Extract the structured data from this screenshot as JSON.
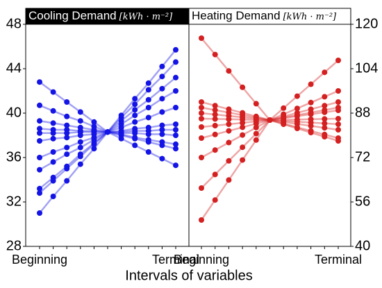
{
  "x_label": "Intervals of variables",
  "chart_data": [
    {
      "type": "line",
      "title": "Cooling Demand",
      "unit": "[kWh · m⁻²]",
      "color": "#1414e6",
      "categories": [
        "Beginning",
        null,
        null,
        null,
        null,
        null,
        null,
        null,
        null,
        null,
        "Terminal"
      ],
      "ylim": [
        28,
        48
      ],
      "yticks": [
        28,
        32,
        36,
        40,
        44,
        48
      ],
      "axis_side": "left",
      "series": [
        {
          "values": [
            42.8,
            41.9,
            41.0,
            40.1,
            39.2,
            38.3,
            37.7,
            37.1,
            36.5,
            35.9,
            35.3
          ]
        },
        {
          "values": [
            31.0,
            32.5,
            33.9,
            35.4,
            36.8,
            38.3,
            39.8,
            41.3,
            42.7,
            44.2,
            45.7
          ]
        },
        {
          "values": [
            33.2,
            34.2,
            35.2,
            36.3,
            37.3,
            38.3,
            39.6,
            40.8,
            42.1,
            43.3,
            44.6
          ]
        },
        {
          "values": [
            36.0,
            36.5,
            36.9,
            37.4,
            37.8,
            38.3,
            38.7,
            39.2,
            39.6,
            40.1,
            40.5
          ]
        },
        {
          "values": [
            40.7,
            40.2,
            39.7,
            39.3,
            38.8,
            38.3,
            38.0,
            37.7,
            37.4,
            37.1,
            36.8
          ]
        },
        {
          "values": [
            38.6,
            38.5,
            38.5,
            38.4,
            38.4,
            38.3,
            38.2,
            38.2,
            38.1,
            38.1,
            38.0
          ]
        },
        {
          "values": [
            37.5,
            37.7,
            37.8,
            38.0,
            38.1,
            38.3,
            38.4,
            38.6,
            38.7,
            38.9,
            39.0
          ]
        },
        {
          "values": [
            34.9,
            35.6,
            36.3,
            36.9,
            37.6,
            38.3,
            39.0,
            39.8,
            40.5,
            41.3,
            42.0
          ]
        },
        {
          "values": [
            39.3,
            39.1,
            38.9,
            38.7,
            38.5,
            38.3,
            38.1,
            37.8,
            37.6,
            37.4,
            37.2
          ]
        },
        {
          "values": [
            32.8,
            33.9,
            35.0,
            36.1,
            37.2,
            38.3,
            39.3,
            40.3,
            41.2,
            42.2,
            43.2
          ]
        },
        {
          "values": [
            38.2,
            38.2,
            38.2,
            38.3,
            38.3,
            38.3,
            38.3,
            38.4,
            38.4,
            38.5,
            38.5
          ]
        }
      ]
    },
    {
      "type": "line",
      "title": "Heating Demand",
      "unit": "[kWh · m⁻²]",
      "color": "#d42020",
      "categories": [
        "Beginning",
        null,
        null,
        null,
        null,
        null,
        null,
        null,
        null,
        null,
        "Terminal"
      ],
      "ylim": [
        40,
        120
      ],
      "yticks": [
        40,
        56,
        72,
        88,
        104,
        120
      ],
      "axis_side": "right",
      "series": [
        {
          "values": [
            115,
            109.1,
            103.2,
            97.3,
            91.4,
            85.5,
            84.2,
            82.9,
            81.6,
            80.3,
            79.0
          ]
        },
        {
          "values": [
            49.5,
            56.7,
            63.9,
            71.1,
            78.3,
            85.5,
            89.8,
            94.1,
            98.4,
            102.7,
            107.0
          ]
        },
        {
          "values": [
            61,
            65.9,
            70.8,
            75.7,
            80.6,
            85.5,
            87.6,
            89.7,
            91.8,
            93.9,
            96.0
          ]
        },
        {
          "values": [
            72,
            74.7,
            77.4,
            80.1,
            82.8,
            85.5,
            86.8,
            88.1,
            89.4,
            90.7,
            92.0
          ]
        },
        {
          "values": [
            90,
            89.1,
            88.2,
            87.3,
            86.4,
            85.5,
            84.8,
            84.1,
            83.4,
            82.7,
            82.0
          ]
        },
        {
          "values": [
            86,
            85.9,
            85.8,
            85.7,
            85.6,
            85.5,
            85.6,
            85.7,
            85.8,
            85.9,
            86.0
          ]
        },
        {
          "values": [
            83,
            83.5,
            84,
            84.5,
            85,
            85.5,
            86.2,
            86.9,
            87.6,
            88.3,
            89.0
          ]
        },
        {
          "values": [
            79,
            80.3,
            81.6,
            82.9,
            84.2,
            85.5,
            86.4,
            87.3,
            88.2,
            89.1,
            90.0
          ]
        },
        {
          "values": [
            88,
            87.5,
            87,
            86.5,
            86,
            85.5,
            85.2,
            84.9,
            84.6,
            84.3,
            84.0
          ]
        },
        {
          "values": [
            92,
            90.7,
            89.4,
            88.1,
            86.8,
            85.5,
            84.0,
            82.5,
            81.0,
            79.5,
            78.0
          ]
        }
      ]
    }
  ]
}
